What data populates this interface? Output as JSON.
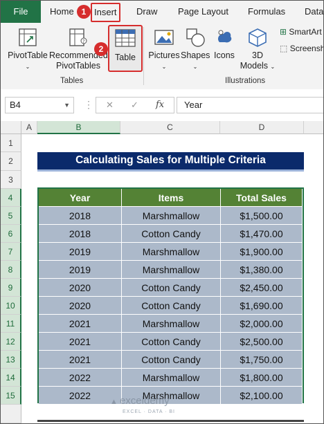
{
  "ribbon_tabs": {
    "file": "File",
    "home": "Home",
    "insert": "Insert",
    "draw": "Draw",
    "page_layout": "Page Layout",
    "formulas": "Formulas",
    "data": "Data"
  },
  "step_badges": {
    "step1": "1",
    "step2": "2"
  },
  "ribbon": {
    "pivot_table": "PivotTable",
    "recommended_line1": "Recommended",
    "recommended_line2": "PivotTables",
    "table": "Table",
    "tables_group": "Tables",
    "pictures": "Pictures",
    "shapes": "Shapes",
    "icons": "Icons",
    "models_line1": "3D",
    "models_line2": "Models",
    "smartart": "SmartArt",
    "screenshot": "Screenshot",
    "illustrations_group": "Illustrations"
  },
  "formula_bar": {
    "name_box": "B4",
    "fx": "fx",
    "value": "Year"
  },
  "columns": [
    "A",
    "B",
    "C",
    "D"
  ],
  "rows": [
    "1",
    "2",
    "3",
    "4",
    "5",
    "6",
    "7",
    "8",
    "9",
    "10",
    "11",
    "12",
    "13",
    "14",
    "15"
  ],
  "sheet_title": "Calculating Sales for Multiple Criteria",
  "table": {
    "headers": [
      "Year",
      "Items",
      "Total Sales"
    ],
    "rows": [
      [
        "2018",
        "Marshmallow",
        "$1,500.00"
      ],
      [
        "2018",
        "Cotton Candy",
        "$1,470.00"
      ],
      [
        "2019",
        "Marshmallow",
        "$1,900.00"
      ],
      [
        "2019",
        "Marshmallow",
        "$1,380.00"
      ],
      [
        "2020",
        "Cotton Candy",
        "$2,450.00"
      ],
      [
        "2020",
        "Cotton Candy",
        "$1,690.00"
      ],
      [
        "2021",
        "Marshmallow",
        "$2,000.00"
      ],
      [
        "2021",
        "Cotton Candy",
        "$2,500.00"
      ],
      [
        "2021",
        "Cotton Candy",
        "$1,750.00"
      ],
      [
        "2022",
        "Marshmallow",
        "$1,800.00"
      ],
      [
        "2022",
        "Marshmallow",
        "$2,100.00"
      ]
    ]
  },
  "watermark": {
    "name": "exceldemy",
    "tagline": "EXCEL · DATA · BI"
  },
  "colors": {
    "excel_green": "#217346",
    "header_green": "#548235",
    "title_navy": "#0b2a6b",
    "row_blue_gray": "#acb9ca",
    "highlight_red": "#d62d2d"
  }
}
